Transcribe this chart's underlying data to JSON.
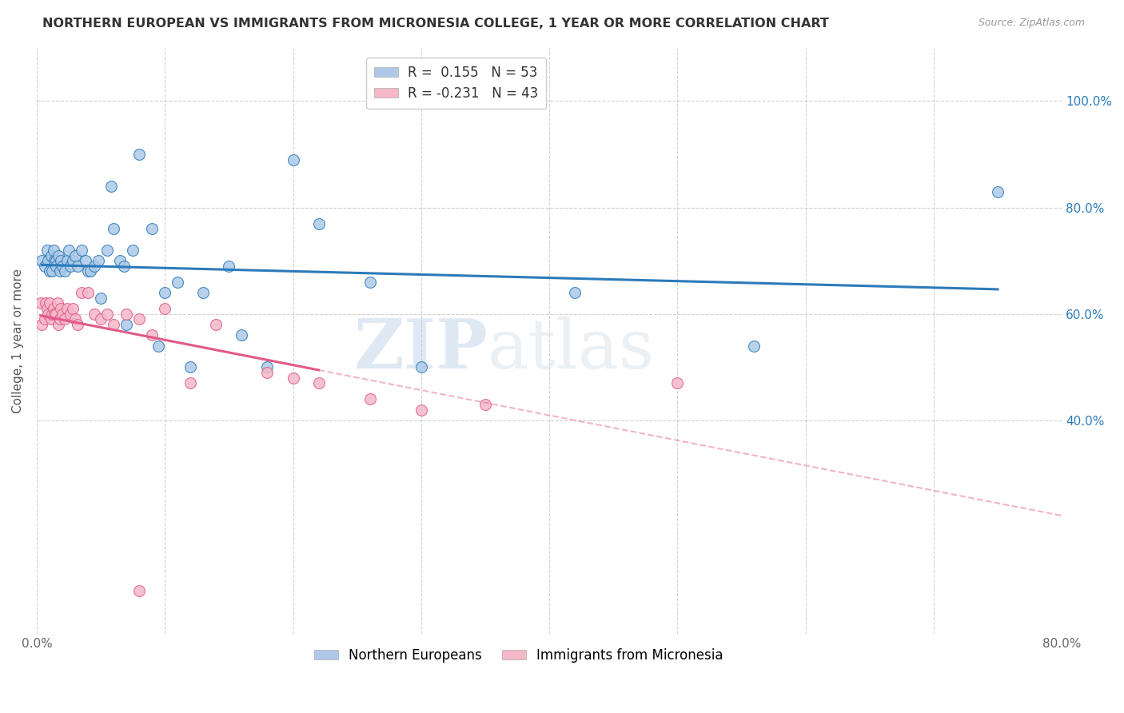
{
  "title": "NORTHERN EUROPEAN VS IMMIGRANTS FROM MICRONESIA COLLEGE, 1 YEAR OR MORE CORRELATION CHART",
  "source": "Source: ZipAtlas.com",
  "ylabel": "College, 1 year or more",
  "xlim": [
    0.0,
    0.8
  ],
  "ylim": [
    0.0,
    1.1
  ],
  "x_ticks": [
    0.0,
    0.1,
    0.2,
    0.3,
    0.4,
    0.5,
    0.6,
    0.7,
    0.8
  ],
  "y_ticks": [
    0.4,
    0.6,
    0.8,
    1.0
  ],
  "blue_R": 0.155,
  "blue_N": 53,
  "pink_R": -0.231,
  "pink_N": 43,
  "blue_color": "#aec9e8",
  "pink_color": "#f4b8c8",
  "blue_line_color": "#2b7bba",
  "pink_line_color": "#e05a8a",
  "legend_label_blue": "Northern Europeans",
  "legend_label_pink": "Immigrants from Micronesia",
  "watermark_zip": "ZIP",
  "watermark_atlas": "atlas",
  "blue_scatter_x": [
    0.004,
    0.006,
    0.008,
    0.009,
    0.01,
    0.011,
    0.012,
    0.013,
    0.014,
    0.015,
    0.015,
    0.017,
    0.018,
    0.019,
    0.02,
    0.022,
    0.024,
    0.025,
    0.026,
    0.028,
    0.03,
    0.032,
    0.035,
    0.038,
    0.04,
    0.042,
    0.045,
    0.048,
    0.05,
    0.055,
    0.058,
    0.06,
    0.065,
    0.068,
    0.07,
    0.075,
    0.08,
    0.09,
    0.095,
    0.1,
    0.11,
    0.12,
    0.13,
    0.15,
    0.16,
    0.18,
    0.2,
    0.22,
    0.26,
    0.3,
    0.42,
    0.56,
    0.75
  ],
  "blue_scatter_y": [
    0.7,
    0.69,
    0.72,
    0.7,
    0.68,
    0.71,
    0.68,
    0.72,
    0.7,
    0.7,
    0.69,
    0.71,
    0.68,
    0.7,
    0.69,
    0.68,
    0.7,
    0.72,
    0.69,
    0.7,
    0.71,
    0.69,
    0.72,
    0.7,
    0.68,
    0.68,
    0.69,
    0.7,
    0.63,
    0.72,
    0.84,
    0.76,
    0.7,
    0.69,
    0.58,
    0.72,
    0.9,
    0.76,
    0.54,
    0.64,
    0.66,
    0.5,
    0.64,
    0.69,
    0.56,
    0.5,
    0.89,
    0.77,
    0.66,
    0.5,
    0.64,
    0.54,
    0.83
  ],
  "pink_scatter_x": [
    0.003,
    0.004,
    0.006,
    0.007,
    0.008,
    0.009,
    0.01,
    0.011,
    0.012,
    0.013,
    0.014,
    0.015,
    0.016,
    0.017,
    0.018,
    0.019,
    0.02,
    0.022,
    0.024,
    0.026,
    0.028,
    0.03,
    0.032,
    0.035,
    0.04,
    0.045,
    0.05,
    0.055,
    0.06,
    0.07,
    0.08,
    0.09,
    0.1,
    0.12,
    0.14,
    0.18,
    0.2,
    0.22,
    0.26,
    0.3,
    0.35,
    0.5,
    0.08
  ],
  "pink_scatter_y": [
    0.62,
    0.58,
    0.59,
    0.62,
    0.61,
    0.6,
    0.62,
    0.59,
    0.6,
    0.61,
    0.6,
    0.6,
    0.62,
    0.58,
    0.59,
    0.61,
    0.6,
    0.59,
    0.61,
    0.6,
    0.61,
    0.59,
    0.58,
    0.64,
    0.64,
    0.6,
    0.59,
    0.6,
    0.58,
    0.6,
    0.59,
    0.56,
    0.61,
    0.47,
    0.58,
    0.49,
    0.48,
    0.47,
    0.44,
    0.42,
    0.43,
    0.47,
    0.08
  ]
}
